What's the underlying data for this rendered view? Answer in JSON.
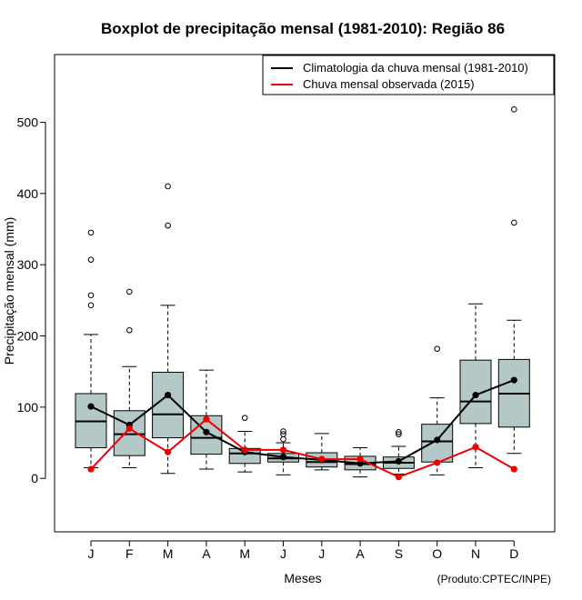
{
  "chart_data": {
    "type": "boxplot",
    "title": "Boxplot de precipitação mensal (1981-2010): Região 86",
    "xlabel": "Meses",
    "ylabel": "Precipitação mensal (mm)",
    "ylim": [
      -75,
      595
    ],
    "yticks": [
      0,
      100,
      200,
      300,
      400,
      500
    ],
    "categories": [
      "J",
      "F",
      "M",
      "A",
      "M",
      "J",
      "J",
      "A",
      "S",
      "O",
      "N",
      "D"
    ],
    "boxes": [
      {
        "low": 15,
        "q1": 43,
        "median": 80,
        "q3": 119,
        "high": 202,
        "outliers": [
          243,
          257,
          307,
          345
        ]
      },
      {
        "low": 15,
        "q1": 32,
        "median": 62,
        "q3": 95,
        "high": 157,
        "outliers": [
          208,
          262
        ]
      },
      {
        "low": 7,
        "q1": 57,
        "median": 90,
        "q3": 149,
        "high": 243,
        "outliers": [
          355,
          410
        ]
      },
      {
        "low": 13,
        "q1": 34,
        "median": 57,
        "q3": 88,
        "high": 152,
        "outliers": []
      },
      {
        "low": 9,
        "q1": 21,
        "median": 35,
        "q3": 42,
        "high": 66,
        "outliers": [
          85
        ]
      },
      {
        "low": 5,
        "q1": 23,
        "median": 28,
        "q3": 35,
        "high": 50,
        "outliers": [
          55,
          62,
          66
        ]
      },
      {
        "low": 12,
        "q1": 16,
        "median": 23,
        "q3": 36,
        "high": 63,
        "outliers": []
      },
      {
        "low": 2,
        "q1": 12,
        "median": 20,
        "q3": 31,
        "high": 43,
        "outliers": []
      },
      {
        "low": 6,
        "q1": 14,
        "median": 22,
        "q3": 30,
        "high": 45,
        "outliers": [
          62,
          65
        ]
      },
      {
        "low": 5,
        "q1": 23,
        "median": 52,
        "q3": 76,
        "high": 113,
        "outliers": [
          182
        ]
      },
      {
        "low": 15,
        "q1": 77,
        "median": 108,
        "q3": 166,
        "high": 245,
        "outliers": []
      },
      {
        "low": 35,
        "q1": 72,
        "median": 119,
        "q3": 167,
        "high": 222,
        "outliers": [
          359,
          518
        ]
      }
    ],
    "series": [
      {
        "name": "Climatologia da chuva mensal (1981-2010)",
        "color": "#000000",
        "values": [
          101,
          75,
          117,
          65,
          37,
          30,
          26,
          21,
          24,
          54,
          117,
          138
        ]
      },
      {
        "name": "Chuva mensal observada (2015)",
        "color": "#ee0000",
        "values": [
          13,
          70,
          37,
          83,
          40,
          40,
          27,
          27,
          2,
          22,
          44,
          13
        ]
      }
    ],
    "box_fill": "#b4c8c8",
    "legend_position": "top-right",
    "credit": "(Produto:CPTEC/INPE)"
  }
}
